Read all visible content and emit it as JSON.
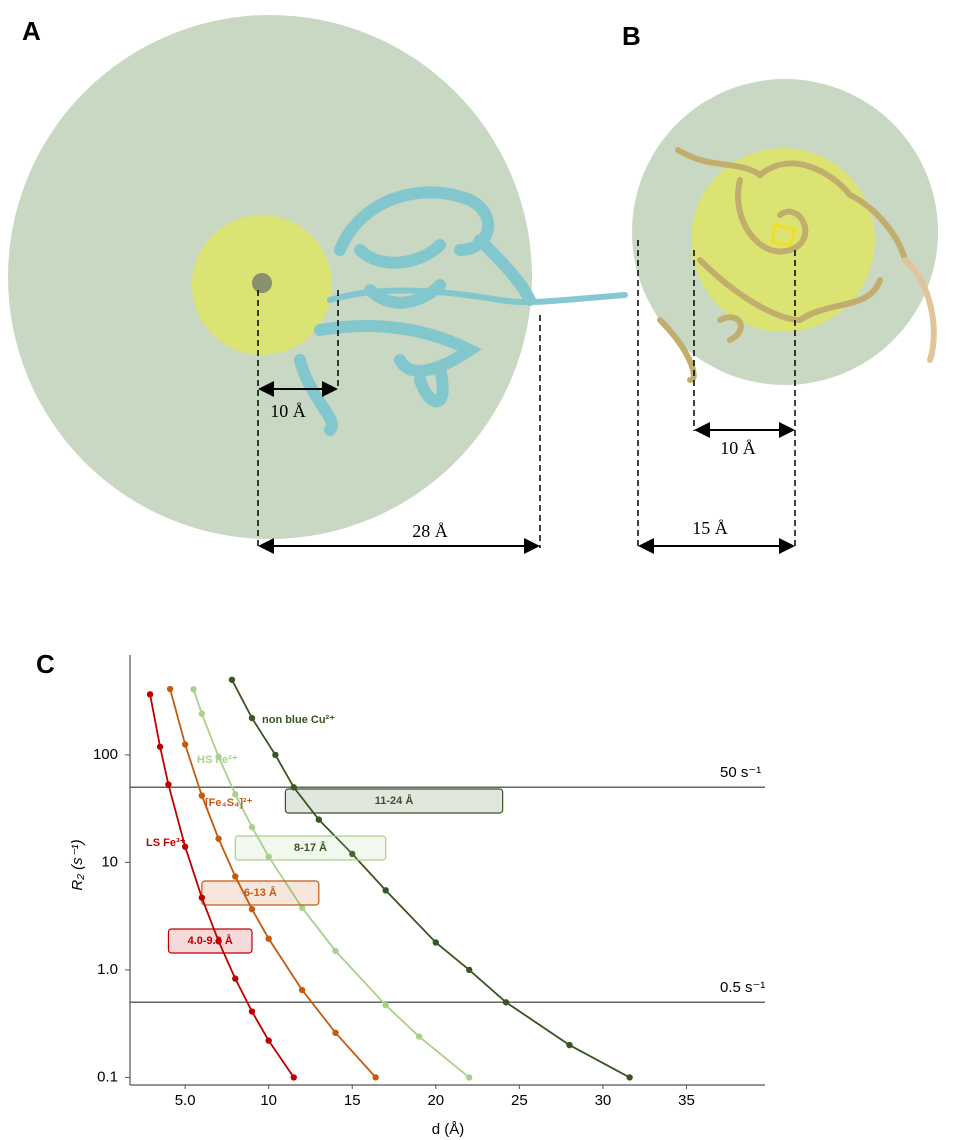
{
  "panels": [
    {
      "label": "A",
      "dimensions": [
        "10 Å",
        "28 Å"
      ]
    },
    {
      "label": "B",
      "dimensions": [
        "10 Å",
        "15 Å"
      ]
    },
    {
      "label": "C"
    }
  ],
  "chart_data": {
    "type": "line",
    "x_label": "d (Å)",
    "y_label": "R₂ (s⁻¹)",
    "log_y": true,
    "xlim": [
      1.7,
      39.7
    ],
    "ylim": [
      0.085,
      850
    ],
    "xticks": [
      {
        "value": 5,
        "label": "5.0"
      },
      10,
      15,
      20,
      25,
      30,
      35
    ],
    "yticks": [
      0.1,
      {
        "value": 1,
        "label": "1.0"
      },
      10,
      100
    ],
    "reference_lines": [
      {
        "value": 50,
        "label": "50 s⁻¹"
      },
      {
        "value": 0.5,
        "label": "0.5 s⁻¹"
      }
    ],
    "series": [
      {
        "name": "non blue Cu²⁺",
        "color": "#375623",
        "x": [
          7.8,
          9,
          10.4,
          11.5,
          13,
          15,
          17,
          20,
          22,
          24.2,
          28,
          31.6
        ],
        "values": [
          500,
          220,
          100,
          50,
          25,
          12,
          5.5,
          1.8,
          1.0,
          0.5,
          0.2,
          0.1
        ],
        "range": {
          "label": "11-24 Å",
          "from": 11,
          "to": 24
        }
      },
      {
        "name": "HS Fe²⁺",
        "color": "#a9d18e",
        "x": [
          5.5,
          6,
          7,
          8,
          9,
          10,
          12,
          14,
          17,
          19,
          22
        ],
        "values": [
          408,
          242,
          96,
          43,
          21.3,
          11.3,
          3.78,
          1.5,
          0.47,
          0.24,
          0.1
        ],
        "range": {
          "label": "8-17 Å",
          "from": 8,
          "to": 17
        }
      },
      {
        "name": "[Fe₄S₄]²⁺",
        "color": "#c55a11",
        "x": [
          4.1,
          5,
          6,
          7,
          8,
          9,
          10,
          12,
          14,
          16.4
        ],
        "values": [
          410,
          125,
          41.8,
          16.6,
          7.4,
          3.67,
          1.95,
          0.65,
          0.26,
          0.1
        ],
        "range": {
          "label": "6-13 Å",
          "from": 6,
          "to": 13
        }
      },
      {
        "name": "LS Fe³⁺",
        "color": "#c00000",
        "x": [
          2.9,
          3.5,
          4,
          5,
          6,
          7,
          8,
          9,
          10,
          11.5
        ],
        "values": [
          366,
          119,
          53,
          14,
          4.7,
          1.85,
          0.83,
          0.41,
          0.22,
          0.1
        ],
        "range": {
          "label": "4.0-9.0 Å",
          "from": 4,
          "to": 9
        }
      }
    ]
  }
}
